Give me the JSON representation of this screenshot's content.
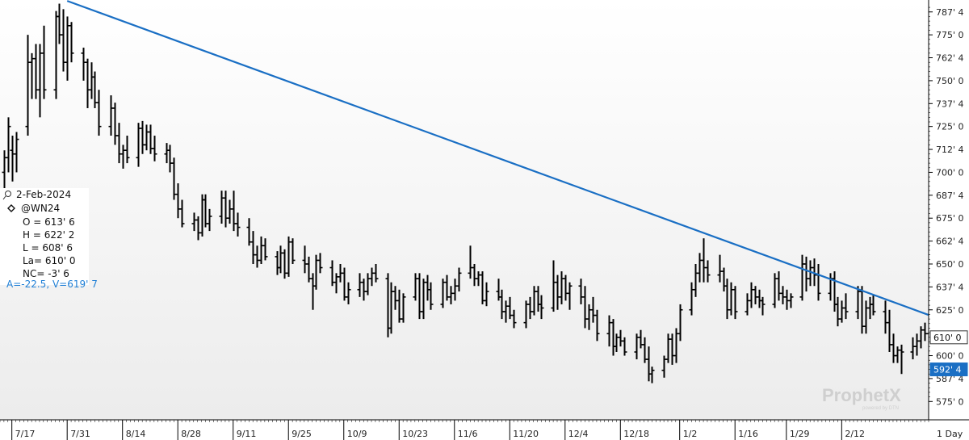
{
  "chart_data": {
    "type": "bar",
    "ohlc_style": true,
    "y_tick_labels": [
      "787' 4",
      "775' 0",
      "762' 4",
      "750' 0",
      "737' 4",
      "725' 0",
      "712' 4",
      "700' 0",
      "687' 4",
      "675' 0",
      "662' 4",
      "650' 0",
      "637' 4",
      "625' 0",
      "600' 0",
      "587' 4",
      "575' 0"
    ],
    "y_tick_values": [
      787.5,
      775,
      762.5,
      750,
      737.5,
      725,
      712.5,
      700,
      687.5,
      675,
      662.5,
      650,
      637.5,
      625,
      600,
      587.5,
      575
    ],
    "ylim": [
      565,
      794
    ],
    "x_tick_labels": [
      "7/17",
      "7/31",
      "8/14",
      "8/28",
      "9/11",
      "9/25",
      "10/9",
      "10/23",
      "11/6",
      "11/20",
      "12/4",
      "12/18",
      "1/2",
      "1/16",
      "1/29",
      "2/12"
    ],
    "x_tick_days": [
      0,
      14,
      28,
      42,
      56,
      70,
      84,
      98,
      112,
      126,
      140,
      154,
      169,
      183,
      196,
      210
    ],
    "xlim": [
      -3,
      232
    ],
    "period_label": "1 Day",
    "bars": [
      {
        "d": -2,
        "o": 700,
        "h": 712,
        "l": 690,
        "c": 708
      },
      {
        "d": -1,
        "o": 708,
        "h": 730,
        "l": 700,
        "c": 725
      },
      {
        "d": 0,
        "o": 712,
        "h": 720,
        "l": 695,
        "c": 710
      },
      {
        "d": 1,
        "o": 710,
        "h": 722,
        "l": 700,
        "c": 718
      },
      {
        "d": 4,
        "o": 725,
        "h": 775,
        "l": 720,
        "c": 760
      },
      {
        "d": 5,
        "o": 760,
        "h": 765,
        "l": 740,
        "c": 762
      },
      {
        "d": 6,
        "o": 762,
        "h": 770,
        "l": 740,
        "c": 745
      },
      {
        "d": 7,
        "o": 745,
        "h": 770,
        "l": 730,
        "c": 765
      },
      {
        "d": 8,
        "o": 765,
        "h": 780,
        "l": 740,
        "c": 745
      },
      {
        "d": 11,
        "o": 745,
        "h": 788,
        "l": 740,
        "c": 785
      },
      {
        "d": 12,
        "o": 785,
        "h": 792,
        "l": 770,
        "c": 775
      },
      {
        "d": 13,
        "o": 775,
        "h": 789,
        "l": 755,
        "c": 760
      },
      {
        "d": 14,
        "o": 760,
        "h": 785,
        "l": 750,
        "c": 780
      },
      {
        "d": 15,
        "o": 780,
        "h": 782,
        "l": 760,
        "c": 765
      },
      {
        "d": 18,
        "o": 765,
        "h": 768,
        "l": 750,
        "c": 760
      },
      {
        "d": 19,
        "o": 760,
        "h": 762,
        "l": 735,
        "c": 745
      },
      {
        "d": 20,
        "o": 745,
        "h": 760,
        "l": 740,
        "c": 752
      },
      {
        "d": 21,
        "o": 752,
        "h": 755,
        "l": 735,
        "c": 738
      },
      {
        "d": 22,
        "o": 738,
        "h": 745,
        "l": 720,
        "c": 725
      },
      {
        "d": 25,
        "o": 725,
        "h": 742,
        "l": 720,
        "c": 735
      },
      {
        "d": 26,
        "o": 735,
        "h": 738,
        "l": 715,
        "c": 720
      },
      {
        "d": 27,
        "o": 720,
        "h": 727,
        "l": 705,
        "c": 710
      },
      {
        "d": 28,
        "o": 710,
        "h": 715,
        "l": 702,
        "c": 712
      },
      {
        "d": 29,
        "o": 712,
        "h": 720,
        "l": 705,
        "c": 708
      },
      {
        "d": 32,
        "o": 708,
        "h": 727,
        "l": 703,
        "c": 724
      },
      {
        "d": 33,
        "o": 724,
        "h": 728,
        "l": 710,
        "c": 715
      },
      {
        "d": 34,
        "o": 715,
        "h": 726,
        "l": 712,
        "c": 722
      },
      {
        "d": 35,
        "o": 722,
        "h": 726,
        "l": 710,
        "c": 713
      },
      {
        "d": 36,
        "o": 713,
        "h": 720,
        "l": 706,
        "c": 710
      },
      {
        "d": 39,
        "o": 710,
        "h": 716,
        "l": 705,
        "c": 712
      },
      {
        "d": 40,
        "o": 712,
        "h": 715,
        "l": 700,
        "c": 705
      },
      {
        "d": 41,
        "o": 705,
        "h": 708,
        "l": 685,
        "c": 688
      },
      {
        "d": 42,
        "o": 688,
        "h": 694,
        "l": 675,
        "c": 680
      },
      {
        "d": 43,
        "o": 680,
        "h": 685,
        "l": 670,
        "c": 672
      },
      {
        "d": 46,
        "o": 672,
        "h": 678,
        "l": 668,
        "c": 674
      },
      {
        "d": 47,
        "o": 674,
        "h": 676,
        "l": 663,
        "c": 667
      },
      {
        "d": 48,
        "o": 667,
        "h": 688,
        "l": 665,
        "c": 685
      },
      {
        "d": 49,
        "o": 685,
        "h": 688,
        "l": 670,
        "c": 672
      },
      {
        "d": 50,
        "o": 672,
        "h": 680,
        "l": 668,
        "c": 676
      },
      {
        "d": 53,
        "o": 676,
        "h": 690,
        "l": 672,
        "c": 686
      },
      {
        "d": 54,
        "o": 686,
        "h": 690,
        "l": 670,
        "c": 675
      },
      {
        "d": 55,
        "o": 675,
        "h": 685,
        "l": 672,
        "c": 680
      },
      {
        "d": 56,
        "o": 680,
        "h": 690,
        "l": 668,
        "c": 672
      },
      {
        "d": 57,
        "o": 672,
        "h": 678,
        "l": 665,
        "c": 670
      },
      {
        "d": 60,
        "o": 670,
        "h": 675,
        "l": 660,
        "c": 662
      },
      {
        "d": 61,
        "o": 662,
        "h": 668,
        "l": 650,
        "c": 655
      },
      {
        "d": 62,
        "o": 655,
        "h": 660,
        "l": 648,
        "c": 652
      },
      {
        "d": 63,
        "o": 652,
        "h": 665,
        "l": 650,
        "c": 660
      },
      {
        "d": 64,
        "o": 660,
        "h": 664,
        "l": 652,
        "c": 654
      },
      {
        "d": 67,
        "o": 654,
        "h": 657,
        "l": 644,
        "c": 648
      },
      {
        "d": 68,
        "o": 648,
        "h": 660,
        "l": 645,
        "c": 656
      },
      {
        "d": 69,
        "o": 656,
        "h": 658,
        "l": 642,
        "c": 645
      },
      {
        "d": 70,
        "o": 645,
        "h": 665,
        "l": 643,
        "c": 662
      },
      {
        "d": 71,
        "o": 662,
        "h": 664,
        "l": 650,
        "c": 652
      },
      {
        "d": 74,
        "o": 652,
        "h": 660,
        "l": 645,
        "c": 650
      },
      {
        "d": 75,
        "o": 650,
        "h": 654,
        "l": 640,
        "c": 642
      },
      {
        "d": 76,
        "o": 642,
        "h": 645,
        "l": 625,
        "c": 638
      },
      {
        "d": 77,
        "o": 638,
        "h": 655,
        "l": 636,
        "c": 652
      },
      {
        "d": 78,
        "o": 652,
        "h": 656,
        "l": 645,
        "c": 648
      },
      {
        "d": 81,
        "o": 648,
        "h": 652,
        "l": 638,
        "c": 640
      },
      {
        "d": 82,
        "o": 640,
        "h": 645,
        "l": 634,
        "c": 643
      },
      {
        "d": 83,
        "o": 643,
        "h": 650,
        "l": 640,
        "c": 645
      },
      {
        "d": 84,
        "o": 645,
        "h": 648,
        "l": 630,
        "c": 632
      },
      {
        "d": 85,
        "o": 632,
        "h": 640,
        "l": 628,
        "c": 636
      },
      {
        "d": 88,
        "o": 636,
        "h": 645,
        "l": 632,
        "c": 640
      },
      {
        "d": 89,
        "o": 640,
        "h": 642,
        "l": 630,
        "c": 635
      },
      {
        "d": 90,
        "o": 635,
        "h": 645,
        "l": 633,
        "c": 642
      },
      {
        "d": 91,
        "o": 642,
        "h": 648,
        "l": 638,
        "c": 645
      },
      {
        "d": 92,
        "o": 645,
        "h": 650,
        "l": 640,
        "c": 642
      },
      {
        "d": 95,
        "o": 642,
        "h": 645,
        "l": 610,
        "c": 615
      },
      {
        "d": 96,
        "o": 615,
        "h": 640,
        "l": 612,
        "c": 635
      },
      {
        "d": 97,
        "o": 635,
        "h": 638,
        "l": 625,
        "c": 630
      },
      {
        "d": 98,
        "o": 630,
        "h": 636,
        "l": 618,
        "c": 620
      },
      {
        "d": 99,
        "o": 620,
        "h": 634,
        "l": 618,
        "c": 632
      },
      {
        "d": 102,
        "o": 632,
        "h": 645,
        "l": 630,
        "c": 642
      },
      {
        "d": 103,
        "o": 642,
        "h": 645,
        "l": 620,
        "c": 624
      },
      {
        "d": 104,
        "o": 624,
        "h": 642,
        "l": 620,
        "c": 640
      },
      {
        "d": 105,
        "o": 640,
        "h": 644,
        "l": 630,
        "c": 636
      },
      {
        "d": 106,
        "o": 636,
        "h": 640,
        "l": 625,
        "c": 628
      },
      {
        "d": 109,
        "o": 628,
        "h": 642,
        "l": 626,
        "c": 640
      },
      {
        "d": 110,
        "o": 640,
        "h": 644,
        "l": 630,
        "c": 632
      },
      {
        "d": 111,
        "o": 632,
        "h": 638,
        "l": 628,
        "c": 634
      },
      {
        "d": 112,
        "o": 634,
        "h": 642,
        "l": 630,
        "c": 638
      },
      {
        "d": 113,
        "o": 638,
        "h": 648,
        "l": 635,
        "c": 645
      },
      {
        "d": 116,
        "o": 645,
        "h": 660,
        "l": 642,
        "c": 648
      },
      {
        "d": 117,
        "o": 648,
        "h": 650,
        "l": 638,
        "c": 642
      },
      {
        "d": 118,
        "o": 642,
        "h": 646,
        "l": 638,
        "c": 644
      },
      {
        "d": 119,
        "o": 644,
        "h": 646,
        "l": 628,
        "c": 630
      },
      {
        "d": 120,
        "o": 630,
        "h": 640,
        "l": 627,
        "c": 635
      },
      {
        "d": 123,
        "o": 635,
        "h": 642,
        "l": 630,
        "c": 632
      },
      {
        "d": 124,
        "o": 632,
        "h": 636,
        "l": 620,
        "c": 624
      },
      {
        "d": 125,
        "o": 624,
        "h": 630,
        "l": 618,
        "c": 627
      },
      {
        "d": 126,
        "o": 627,
        "h": 632,
        "l": 620,
        "c": 622
      },
      {
        "d": 127,
        "o": 622,
        "h": 625,
        "l": 615,
        "c": 618
      },
      {
        "d": 130,
        "o": 618,
        "h": 630,
        "l": 615,
        "c": 628
      },
      {
        "d": 131,
        "o": 628,
        "h": 632,
        "l": 620,
        "c": 624
      },
      {
        "d": 132,
        "o": 624,
        "h": 638,
        "l": 622,
        "c": 635
      },
      {
        "d": 133,
        "o": 635,
        "h": 638,
        "l": 624,
        "c": 628
      },
      {
        "d": 134,
        "o": 628,
        "h": 633,
        "l": 620,
        "c": 626
      },
      {
        "d": 137,
        "o": 626,
        "h": 652,
        "l": 624,
        "c": 640
      },
      {
        "d": 138,
        "o": 640,
        "h": 644,
        "l": 625,
        "c": 632
      },
      {
        "d": 139,
        "o": 632,
        "h": 646,
        "l": 628,
        "c": 642
      },
      {
        "d": 140,
        "o": 642,
        "h": 644,
        "l": 630,
        "c": 634
      },
      {
        "d": 141,
        "o": 634,
        "h": 640,
        "l": 625,
        "c": 638
      },
      {
        "d": 144,
        "o": 638,
        "h": 642,
        "l": 628,
        "c": 632
      },
      {
        "d": 145,
        "o": 632,
        "h": 638,
        "l": 615,
        "c": 620
      },
      {
        "d": 146,
        "o": 620,
        "h": 628,
        "l": 614,
        "c": 625
      },
      {
        "d": 147,
        "o": 625,
        "h": 632,
        "l": 618,
        "c": 622
      },
      {
        "d": 148,
        "o": 622,
        "h": 625,
        "l": 608,
        "c": 612
      },
      {
        "d": 151,
        "o": 612,
        "h": 622,
        "l": 605,
        "c": 618
      },
      {
        "d": 152,
        "o": 618,
        "h": 620,
        "l": 600,
        "c": 605
      },
      {
        "d": 153,
        "o": 605,
        "h": 612,
        "l": 602,
        "c": 610
      },
      {
        "d": 154,
        "o": 610,
        "h": 614,
        "l": 605,
        "c": 608
      },
      {
        "d": 155,
        "o": 608,
        "h": 610,
        "l": 600,
        "c": 602
      },
      {
        "d": 158,
        "o": 602,
        "h": 612,
        "l": 598,
        "c": 610
      },
      {
        "d": 159,
        "o": 610,
        "h": 614,
        "l": 604,
        "c": 606
      },
      {
        "d": 160,
        "o": 606,
        "h": 610,
        "l": 596,
        "c": 598
      },
      {
        "d": 161,
        "o": 598,
        "h": 605,
        "l": 586,
        "c": 590
      },
      {
        "d": 162,
        "o": 590,
        "h": 594,
        "l": 585,
        "c": 592
      },
      {
        "d": 165,
        "o": 592,
        "h": 600,
        "l": 588,
        "c": 598
      },
      {
        "d": 166,
        "o": 598,
        "h": 612,
        "l": 596,
        "c": 609
      },
      {
        "d": 167,
        "o": 609,
        "h": 612,
        "l": 595,
        "c": 600
      },
      {
        "d": 168,
        "o": 600,
        "h": 615,
        "l": 596,
        "c": 612
      },
      {
        "d": 169,
        "o": 612,
        "h": 628,
        "l": 608,
        "c": 625
      },
      {
        "d": 172,
        "o": 625,
        "h": 640,
        "l": 622,
        "c": 636
      },
      {
        "d": 173,
        "o": 636,
        "h": 650,
        "l": 632,
        "c": 645
      },
      {
        "d": 174,
        "o": 645,
        "h": 656,
        "l": 640,
        "c": 652
      },
      {
        "d": 175,
        "o": 652,
        "h": 664,
        "l": 640,
        "c": 648
      },
      {
        "d": 176,
        "o": 648,
        "h": 652,
        "l": 640,
        "c": 644
      },
      {
        "d": 179,
        "o": 644,
        "h": 655,
        "l": 640,
        "c": 646
      },
      {
        "d": 180,
        "o": 646,
        "h": 648,
        "l": 635,
        "c": 638
      },
      {
        "d": 181,
        "o": 638,
        "h": 642,
        "l": 620,
        "c": 625
      },
      {
        "d": 182,
        "o": 625,
        "h": 640,
        "l": 622,
        "c": 636
      },
      {
        "d": 183,
        "o": 636,
        "h": 638,
        "l": 620,
        "c": 624
      },
      {
        "d": 186,
        "o": 624,
        "h": 634,
        "l": 622,
        "c": 630
      },
      {
        "d": 187,
        "o": 630,
        "h": 640,
        "l": 626,
        "c": 636
      },
      {
        "d": 188,
        "o": 636,
        "h": 638,
        "l": 628,
        "c": 632
      },
      {
        "d": 189,
        "o": 632,
        "h": 636,
        "l": 626,
        "c": 630
      },
      {
        "d": 190,
        "o": 630,
        "h": 632,
        "l": 622,
        "c": 628
      },
      {
        "d": 193,
        "o": 628,
        "h": 645,
        "l": 626,
        "c": 642
      },
      {
        "d": 194,
        "o": 642,
        "h": 646,
        "l": 630,
        "c": 634
      },
      {
        "d": 195,
        "o": 634,
        "h": 638,
        "l": 628,
        "c": 632
      },
      {
        "d": 196,
        "o": 632,
        "h": 636,
        "l": 625,
        "c": 630
      },
      {
        "d": 197,
        "o": 630,
        "h": 634,
        "l": 626,
        "c": 632
      },
      {
        "d": 200,
        "o": 632,
        "h": 655,
        "l": 630,
        "c": 650
      },
      {
        "d": 201,
        "o": 650,
        "h": 654,
        "l": 635,
        "c": 642
      },
      {
        "d": 202,
        "o": 642,
        "h": 652,
        "l": 638,
        "c": 648
      },
      {
        "d": 203,
        "o": 648,
        "h": 653,
        "l": 638,
        "c": 644
      },
      {
        "d": 204,
        "o": 644,
        "h": 650,
        "l": 630,
        "c": 634
      },
      {
        "d": 207,
        "o": 634,
        "h": 645,
        "l": 630,
        "c": 642
      },
      {
        "d": 208,
        "o": 642,
        "h": 646,
        "l": 624,
        "c": 628
      },
      {
        "d": 209,
        "o": 628,
        "h": 632,
        "l": 616,
        "c": 620
      },
      {
        "d": 210,
        "o": 620,
        "h": 630,
        "l": 618,
        "c": 626
      },
      {
        "d": 211,
        "o": 626,
        "h": 634,
        "l": 620,
        "c": 624
      },
      {
        "d": 214,
        "o": 624,
        "h": 638,
        "l": 620,
        "c": 635
      },
      {
        "d": 215,
        "o": 635,
        "h": 638,
        "l": 612,
        "c": 616
      },
      {
        "d": 216,
        "o": 616,
        "h": 630,
        "l": 612,
        "c": 626
      },
      {
        "d": 217,
        "o": 626,
        "h": 632,
        "l": 620,
        "c": 628
      },
      {
        "d": 218,
        "o": 628,
        "h": 633,
        "l": 622,
        "c": 624
      },
      {
        "d": 221,
        "o": 624,
        "h": 630,
        "l": 612,
        "c": 618
      },
      {
        "d": 222,
        "o": 618,
        "h": 625,
        "l": 602,
        "c": 606
      },
      {
        "d": 223,
        "o": 606,
        "h": 612,
        "l": 596,
        "c": 600
      },
      {
        "d": 224,
        "o": 600,
        "h": 605,
        "l": 596,
        "c": 603
      },
      {
        "d": 225,
        "o": 603,
        "h": 606,
        "l": 590,
        "c": 602
      },
      {
        "d": 228,
        "o": 602,
        "h": 610,
        "l": 598,
        "c": 605
      },
      {
        "d": 229,
        "o": 605,
        "h": 612,
        "l": 600,
        "c": 608
      },
      {
        "d": 230,
        "o": 608,
        "h": 616,
        "l": 604,
        "c": 614
      },
      {
        "d": 231,
        "o": 614,
        "h": 618,
        "l": 608,
        "c": 612
      },
      {
        "d": 232,
        "o": 612,
        "h": 615,
        "l": 606,
        "c": 610
      }
    ],
    "trendline": {
      "start": {
        "d": 14,
        "price": 793.5
      },
      "end": {
        "d": 273,
        "price": 590.0
      },
      "color": "#1a6fc4"
    },
    "price_tags": [
      {
        "label": "610' 0",
        "value": 610.0,
        "bg": "#ffffff",
        "fg": "#111111"
      },
      {
        "label": "592' 4",
        "value": 592.5,
        "bg": "#1a6fc4",
        "fg": "#ffffff"
      }
    ],
    "info_panel": {
      "date": "2-Feb-2024",
      "symbol": "@WN24",
      "open": "O = 613' 6",
      "high": "H = 622' 2",
      "low": "L = 608' 6",
      "last": "La= 610' 0",
      "net_change": "NC= -3' 6",
      "analysis": "A=-22.5, V=619' 7"
    },
    "logo": {
      "name": "ProphetX",
      "sub": "powered by DTN"
    }
  }
}
